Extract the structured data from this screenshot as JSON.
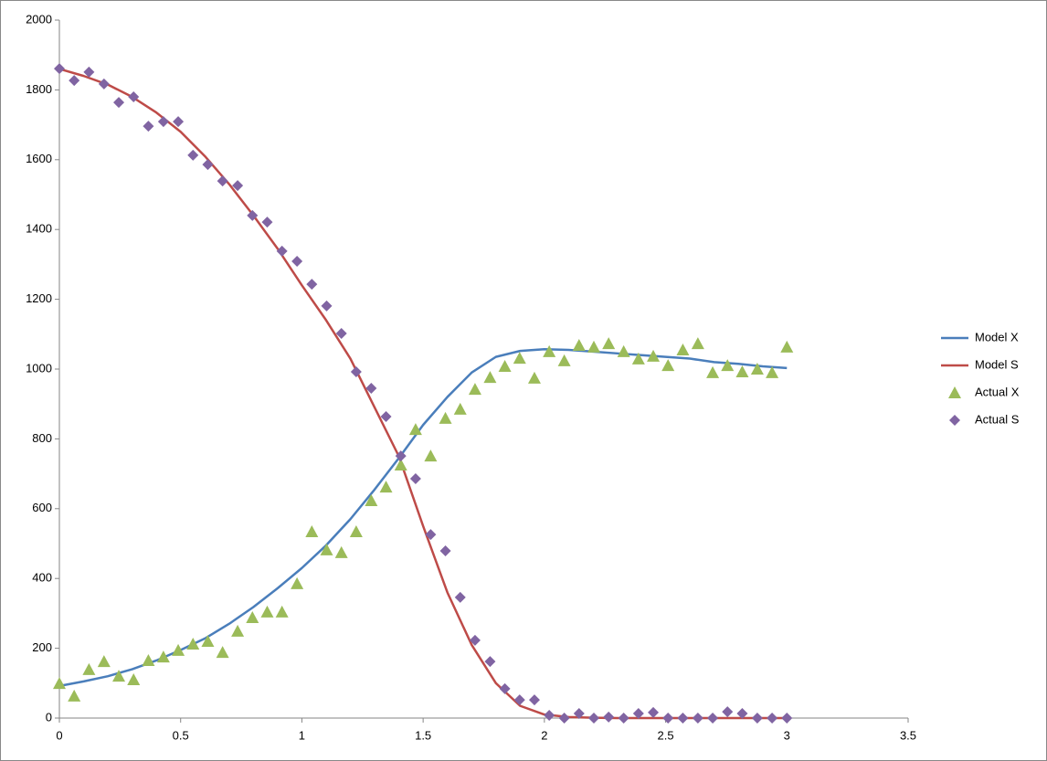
{
  "chart_data": {
    "type": "scatter",
    "xlim": [
      0,
      3.5
    ],
    "xticks": [
      0,
      0.5,
      1,
      1.5,
      2,
      2.5,
      3,
      3.5
    ],
    "ylim": [
      0,
      2000
    ],
    "yticks": [
      0,
      200,
      400,
      600,
      800,
      1000,
      1200,
      1400,
      1600,
      1800,
      2000
    ],
    "grid": false,
    "legend": "right",
    "series": [
      {
        "name": "Model X",
        "color": "#4a7ebb",
        "style": "line",
        "x": [
          0,
          0.1,
          0.2,
          0.3,
          0.4,
          0.5,
          0.6,
          0.7,
          0.8,
          0.9,
          1.0,
          1.1,
          1.2,
          1.3,
          1.4,
          1.5,
          1.6,
          1.7,
          1.8,
          1.9,
          2.0,
          2.1,
          2.2,
          2.3,
          2.4,
          2.5,
          2.6,
          2.7,
          2.8,
          2.9,
          3.0
        ],
        "values": [
          92,
          105,
          120,
          140,
          165,
          195,
          228,
          270,
          318,
          372,
          430,
          495,
          570,
          655,
          745,
          840,
          920,
          990,
          1035,
          1052,
          1057,
          1055,
          1050,
          1045,
          1040,
          1035,
          1030,
          1020,
          1015,
          1008,
          1003
        ]
      },
      {
        "name": "Model S",
        "color": "#be4b48",
        "style": "line",
        "x": [
          0,
          0.1,
          0.2,
          0.3,
          0.4,
          0.5,
          0.6,
          0.7,
          0.8,
          0.9,
          1.0,
          1.1,
          1.2,
          1.3,
          1.4,
          1.5,
          1.6,
          1.7,
          1.8,
          1.9,
          2.0,
          2.1,
          2.2,
          2.3,
          2.4,
          2.5,
          2.6,
          2.7,
          2.8,
          2.9,
          3.0
        ],
        "values": [
          1860,
          1840,
          1815,
          1780,
          1735,
          1680,
          1610,
          1530,
          1440,
          1345,
          1240,
          1140,
          1030,
          890,
          750,
          550,
          360,
          210,
          100,
          35,
          10,
          3,
          1,
          0,
          0,
          0,
          0,
          0,
          0,
          0,
          0
        ]
      },
      {
        "name": "Actual X",
        "color": "#9bbb59",
        "style": "triangle",
        "x": [
          0,
          0.061,
          0.122,
          0.184,
          0.245,
          0.306,
          0.367,
          0.429,
          0.49,
          0.551,
          0.612,
          0.673,
          0.735,
          0.796,
          0.857,
          0.918,
          0.98,
          1.041,
          1.102,
          1.163,
          1.224,
          1.286,
          1.347,
          1.408,
          1.469,
          1.531,
          1.592,
          1.653,
          1.714,
          1.776,
          1.837,
          1.898,
          1.959,
          2.02,
          2.082,
          2.143,
          2.204,
          2.265,
          2.327,
          2.388,
          2.449,
          2.51,
          2.571,
          2.633,
          2.694,
          2.755,
          2.816,
          2.878,
          2.939,
          3.0
        ],
        "values": [
          99,
          63,
          139,
          162,
          120,
          110,
          165,
          175,
          194,
          212,
          220,
          188,
          249,
          288,
          304,
          304,
          385,
          534,
          482,
          474,
          534,
          623,
          662,
          725,
          827,
          751,
          859,
          885,
          942,
          976,
          1008,
          1031,
          974,
          1050,
          1024,
          1068,
          1063,
          1073,
          1050,
          1029,
          1037,
          1010,
          1055,
          1073,
          990,
          1010,
          992,
          1000,
          990,
          1063
        ]
      },
      {
        "name": "Actual S",
        "color": "#8064a2",
        "style": "diamond",
        "x": [
          0,
          0.061,
          0.122,
          0.184,
          0.245,
          0.306,
          0.367,
          0.429,
          0.49,
          0.551,
          0.612,
          0.673,
          0.735,
          0.796,
          0.857,
          0.918,
          0.98,
          1.041,
          1.102,
          1.163,
          1.224,
          1.286,
          1.347,
          1.408,
          1.469,
          1.531,
          1.592,
          1.653,
          1.714,
          1.776,
          1.837,
          1.898,
          1.959,
          2.02,
          2.082,
          2.143,
          2.204,
          2.265,
          2.327,
          2.388,
          2.449,
          2.51,
          2.571,
          2.633,
          2.694,
          2.755,
          2.816,
          2.878,
          2.939,
          3.0
        ],
        "values": [
          1861,
          1827,
          1851,
          1817,
          1764,
          1780,
          1696,
          1709,
          1709,
          1613,
          1586,
          1539,
          1526,
          1440,
          1421,
          1338,
          1309,
          1243,
          1181,
          1102,
          992,
          945,
          864,
          751,
          686,
          526,
          479,
          346,
          223,
          162,
          84,
          52,
          52,
          8,
          0,
          13,
          0,
          3,
          0,
          13,
          16,
          0,
          0,
          0,
          0,
          18,
          13,
          0,
          0,
          0
        ]
      }
    ]
  }
}
